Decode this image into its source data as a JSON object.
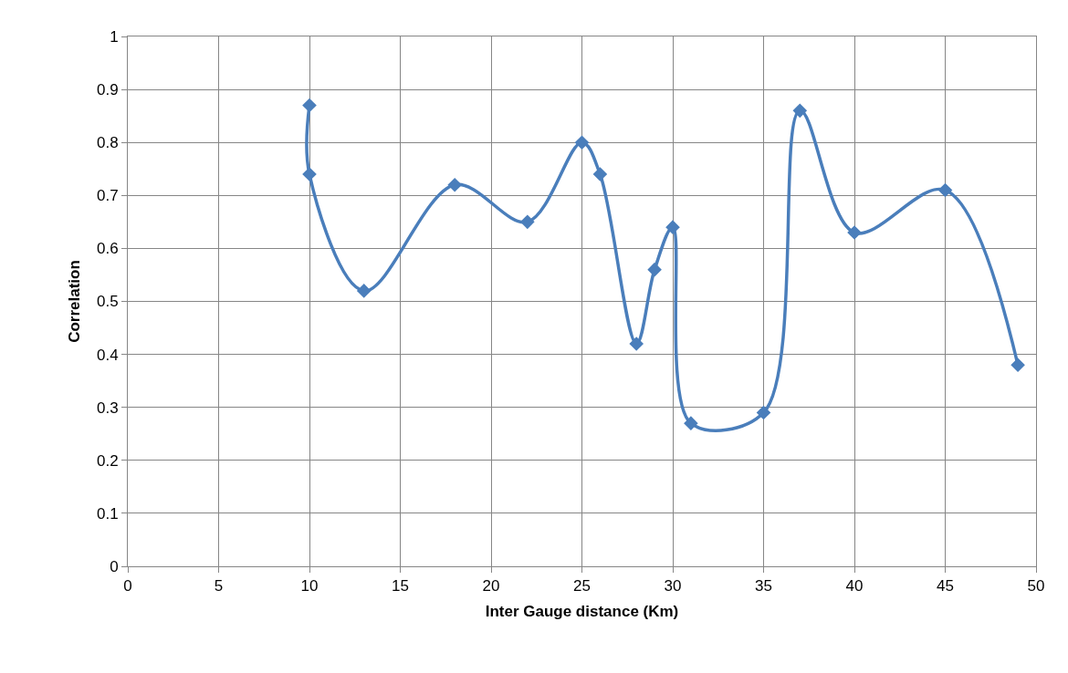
{
  "chart_data": {
    "type": "line",
    "xlabel": "Inter Gauge distance (Km)",
    "ylabel": "Correlation",
    "x": [
      10,
      10,
      13,
      18,
      22,
      25,
      26,
      28,
      29,
      30,
      31,
      35,
      37,
      40,
      45,
      49
    ],
    "series": [
      {
        "color": "#4a7ebb",
        "values": [
          0.87,
          0.74,
          0.52,
          0.72,
          0.65,
          0.8,
          0.74,
          0.42,
          0.56,
          0.64,
          0.27,
          0.29,
          0.86,
          0.63,
          0.71,
          0.38
        ]
      }
    ],
    "xlim": [
      0,
      50
    ],
    "xticks": [
      0,
      5,
      10,
      15,
      20,
      25,
      30,
      35,
      40,
      45,
      50
    ],
    "ylim": [
      0,
      1
    ],
    "yticks": [
      0,
      0.1,
      0.2,
      0.3,
      0.4,
      0.5,
      0.6,
      0.7,
      0.8,
      0.9,
      1
    ],
    "grid": true,
    "marker": "diamond",
    "line_style": "solid"
  }
}
